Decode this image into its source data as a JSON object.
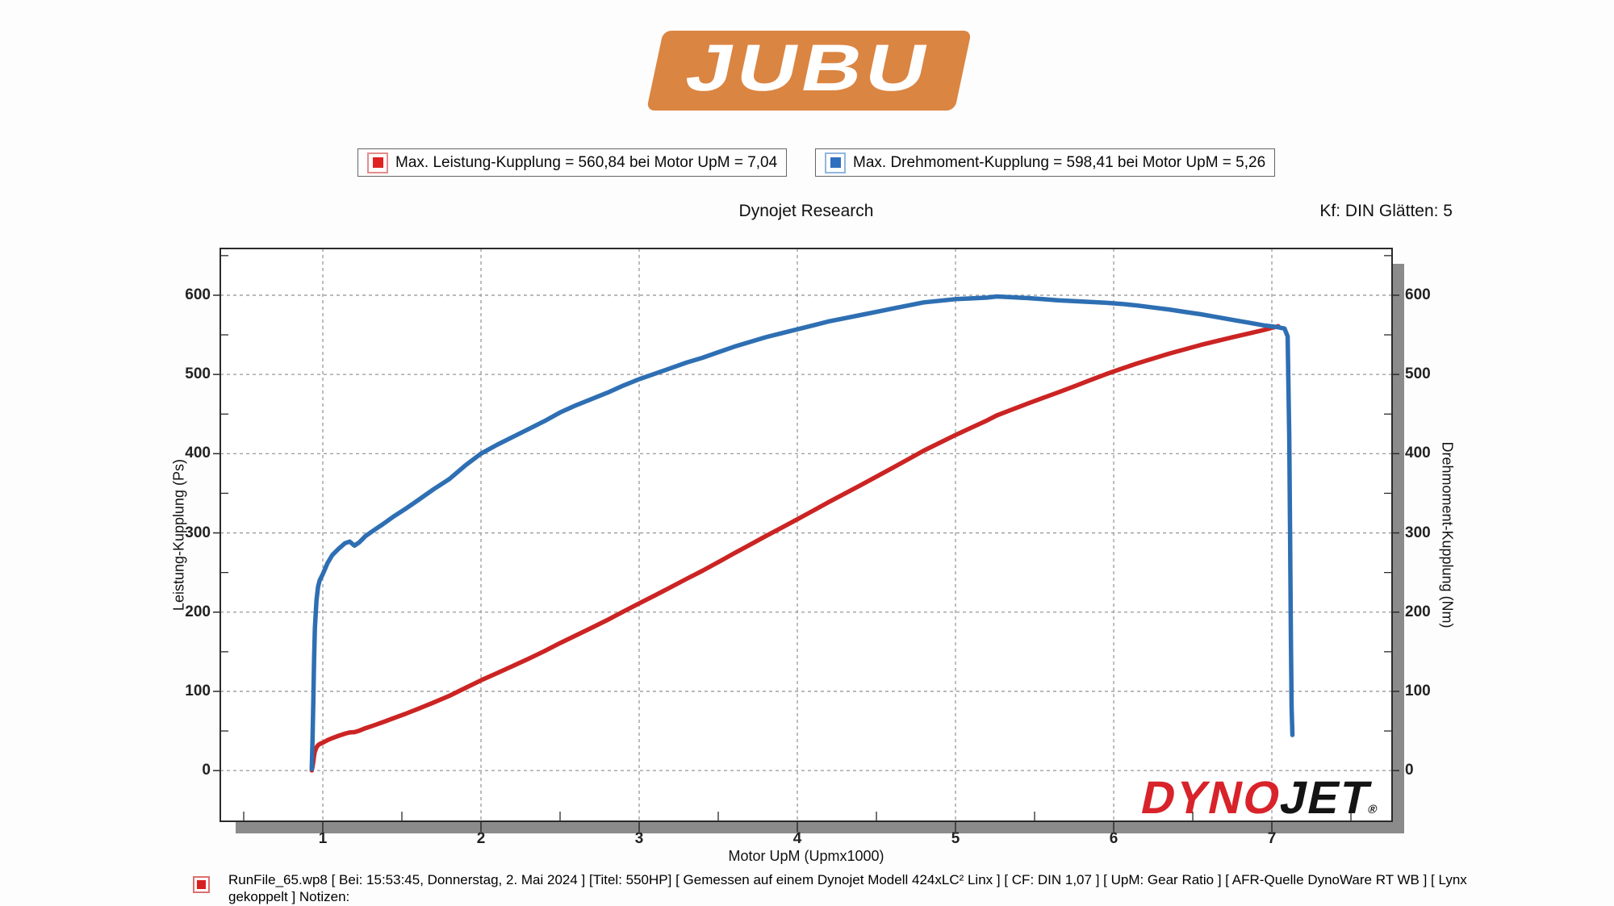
{
  "logo": {
    "text": "JUBU",
    "bg_color": "#db8542",
    "text_color": "#ffffff"
  },
  "legend": {
    "entries": [
      {
        "label": "Max. Leistung-Kupplung = 560,84 bei Motor UpM = 7,04",
        "marker_color": "#e02222",
        "marker_border": "#e58c8c"
      },
      {
        "label": "Max. Drehmoment-Kupplung = 598,41 bei Motor UpM = 5,26",
        "marker_color": "#2f6fc0",
        "marker_border": "#92b6e0"
      }
    ]
  },
  "chart_header": {
    "title": "Dynojet Research",
    "right_label": "Kf: DIN Glätten: 5"
  },
  "watermark": {
    "part1": "DYNO",
    "part2": "JET",
    "reg": "®",
    "color1": "#d8232a",
    "color2": "#141414"
  },
  "chart_data": {
    "type": "line",
    "title": "Dynojet Research",
    "xlabel": "Motor UpM (Upmx1000)",
    "ylabel_left": "Leistung-Kupplung (Ps)",
    "ylabel_right": "Drehmoment-Kupplung (Nm)",
    "x_range": [
      0.352,
      7.76
    ],
    "y_range": [
      -64,
      659
    ],
    "x_ticks": [
      1,
      2,
      3,
      4,
      5,
      6,
      7
    ],
    "y_ticks": [
      0,
      100,
      200,
      300,
      400,
      500,
      600
    ],
    "x_minor_ticks": [
      0.5,
      1.5,
      2.5,
      3.5,
      4.5,
      5.5,
      6.5,
      7.5
    ],
    "y_minor_ticks": [
      50,
      150,
      250,
      350,
      450,
      550,
      650
    ],
    "grid": "dashed",
    "grid_color": "#999999",
    "border_color": "#2b2b2b",
    "legend_position": "top-outside",
    "series": [
      {
        "name": "Leistung-Kupplung",
        "unit": "Ps",
        "axis": "left",
        "color": "#cb2423",
        "max": {
          "value": 560.84,
          "at_upm_x1000": 7.04
        },
        "points": [
          [
            0.93,
            0.3
          ],
          [
            0.935,
            5.3
          ],
          [
            0.94,
            12.0
          ],
          [
            0.945,
            18.8
          ],
          [
            0.95,
            24.3
          ],
          [
            0.96,
            29.4
          ],
          [
            0.97,
            32.0
          ],
          [
            0.98,
            33.5
          ],
          [
            1.0,
            35.3
          ],
          [
            1.03,
            38.4
          ],
          [
            1.06,
            41.0
          ],
          [
            1.1,
            43.9
          ],
          [
            1.14,
            46.6
          ],
          [
            1.17,
            48.1
          ],
          [
            1.2,
            48.5
          ],
          [
            1.23,
            50.4
          ],
          [
            1.27,
            53.5
          ],
          [
            1.32,
            56.9
          ],
          [
            1.38,
            61.1
          ],
          [
            1.45,
            66.3
          ],
          [
            1.52,
            71.4
          ],
          [
            1.6,
            77.7
          ],
          [
            1.7,
            85.9
          ],
          [
            1.8,
            94.3
          ],
          [
            1.9,
            104.1
          ],
          [
            2.0,
            113.9
          ],
          [
            2.1,
            122.9
          ],
          [
            2.2,
            131.9
          ],
          [
            2.3,
            141.1
          ],
          [
            2.4,
            150.7
          ],
          [
            2.5,
            160.9
          ],
          [
            2.6,
            170.6
          ],
          [
            2.7,
            180.3
          ],
          [
            2.8,
            190.2
          ],
          [
            2.9,
            200.7
          ],
          [
            3.0,
            211.0
          ],
          [
            3.1,
            221.1
          ],
          [
            3.2,
            231.5
          ],
          [
            3.3,
            242.0
          ],
          [
            3.4,
            252.2
          ],
          [
            3.5,
            263.1
          ],
          [
            3.6,
            274.2
          ],
          [
            3.7,
            285.0
          ],
          [
            3.8,
            295.9
          ],
          [
            3.9,
            306.5
          ],
          [
            4.0,
            317.2
          ],
          [
            4.1,
            328.1
          ],
          [
            4.2,
            339.0
          ],
          [
            4.3,
            349.6
          ],
          [
            4.4,
            360.2
          ],
          [
            4.5,
            371.0
          ],
          [
            4.6,
            381.8
          ],
          [
            4.7,
            392.8
          ],
          [
            4.8,
            403.9
          ],
          [
            4.9,
            413.7
          ],
          [
            5.0,
            423.6
          ],
          [
            5.1,
            432.8
          ],
          [
            5.2,
            442.0
          ],
          [
            5.26,
            448.2
          ],
          [
            5.35,
            455.1
          ],
          [
            5.45,
            462.8
          ],
          [
            5.55,
            470.2
          ],
          [
            5.65,
            477.4
          ],
          [
            5.75,
            485.0
          ],
          [
            5.85,
            492.7
          ],
          [
            5.95,
            500.2
          ],
          [
            6.05,
            507.3
          ],
          [
            6.15,
            514.0
          ],
          [
            6.25,
            520.1
          ],
          [
            6.35,
            526.2
          ],
          [
            6.45,
            531.7
          ],
          [
            6.55,
            537.2
          ],
          [
            6.65,
            542.1
          ],
          [
            6.75,
            546.9
          ],
          [
            6.85,
            551.5
          ],
          [
            6.95,
            556.1
          ],
          [
            7.0,
            558.8
          ],
          [
            7.04,
            560.8
          ]
        ]
      },
      {
        "name": "Drehmoment-Kupplung",
        "unit": "Nm",
        "axis": "right",
        "color": "#2e6fb3",
        "max": {
          "value": 598.41,
          "at_upm_x1000": 5.26
        },
        "points": [
          [
            0.93,
            2
          ],
          [
            0.935,
            40
          ],
          [
            0.94,
            90
          ],
          [
            0.945,
            140
          ],
          [
            0.95,
            180
          ],
          [
            0.96,
            215
          ],
          [
            0.97,
            232
          ],
          [
            0.98,
            240
          ],
          [
            1.0,
            248
          ],
          [
            1.03,
            262
          ],
          [
            1.06,
            272
          ],
          [
            1.1,
            280
          ],
          [
            1.14,
            287
          ],
          [
            1.17,
            289
          ],
          [
            1.2,
            284
          ],
          [
            1.23,
            288
          ],
          [
            1.27,
            296
          ],
          [
            1.32,
            303
          ],
          [
            1.38,
            311
          ],
          [
            1.45,
            321
          ],
          [
            1.52,
            330
          ],
          [
            1.6,
            341
          ],
          [
            1.7,
            355
          ],
          [
            1.8,
            368
          ],
          [
            1.9,
            385
          ],
          [
            2.0,
            400
          ],
          [
            2.1,
            411
          ],
          [
            2.2,
            421
          ],
          [
            2.3,
            431
          ],
          [
            2.4,
            441
          ],
          [
            2.5,
            452
          ],
          [
            2.6,
            461
          ],
          [
            2.7,
            469
          ],
          [
            2.8,
            477
          ],
          [
            2.9,
            486
          ],
          [
            3.0,
            494
          ],
          [
            3.1,
            501
          ],
          [
            3.2,
            508
          ],
          [
            3.3,
            515
          ],
          [
            3.4,
            521
          ],
          [
            3.5,
            528
          ],
          [
            3.6,
            535
          ],
          [
            3.7,
            541
          ],
          [
            3.8,
            547
          ],
          [
            3.9,
            552
          ],
          [
            4.0,
            557
          ],
          [
            4.1,
            562
          ],
          [
            4.2,
            567
          ],
          [
            4.3,
            571
          ],
          [
            4.4,
            575
          ],
          [
            4.5,
            579
          ],
          [
            4.6,
            583
          ],
          [
            4.7,
            587
          ],
          [
            4.8,
            591
          ],
          [
            4.9,
            593
          ],
          [
            5.0,
            595
          ],
          [
            5.1,
            596
          ],
          [
            5.2,
            597
          ],
          [
            5.26,
            598.4
          ],
          [
            5.35,
            597.5
          ],
          [
            5.45,
            596.5
          ],
          [
            5.55,
            595
          ],
          [
            5.65,
            593.5
          ],
          [
            5.75,
            592.5
          ],
          [
            5.85,
            591.5
          ],
          [
            5.95,
            590.5
          ],
          [
            6.05,
            589
          ],
          [
            6.15,
            587
          ],
          [
            6.25,
            584.5
          ],
          [
            6.35,
            582
          ],
          [
            6.45,
            579
          ],
          [
            6.55,
            576
          ],
          [
            6.65,
            572.5
          ],
          [
            6.75,
            569
          ],
          [
            6.85,
            565.5
          ],
          [
            6.95,
            562
          ],
          [
            7.0,
            560.7
          ],
          [
            7.04,
            559.5
          ],
          [
            7.08,
            558
          ],
          [
            7.1,
            548
          ],
          [
            7.11,
            420
          ],
          [
            7.115,
            300
          ],
          [
            7.12,
            170
          ],
          [
            7.125,
            80
          ],
          [
            7.13,
            45
          ]
        ]
      }
    ]
  },
  "footer": {
    "line1": "RunFile_65.wp8 [ Bei: 15:53:45, Donnerstag, 2. Mai 2024 ] [Titel: 550HP]  [ Gemessen auf einem Dynojet Modell 424xLC² Linx ] [ CF: DIN 1,07 ] [ UpM: Gear Ratio ] [ AFR-Quelle  DynoWare RT WB ] [ Lynx",
    "line2": "gekoppelt ] Notizen:",
    "marker_color": "#d92020",
    "marker_border": "#dd7070"
  }
}
